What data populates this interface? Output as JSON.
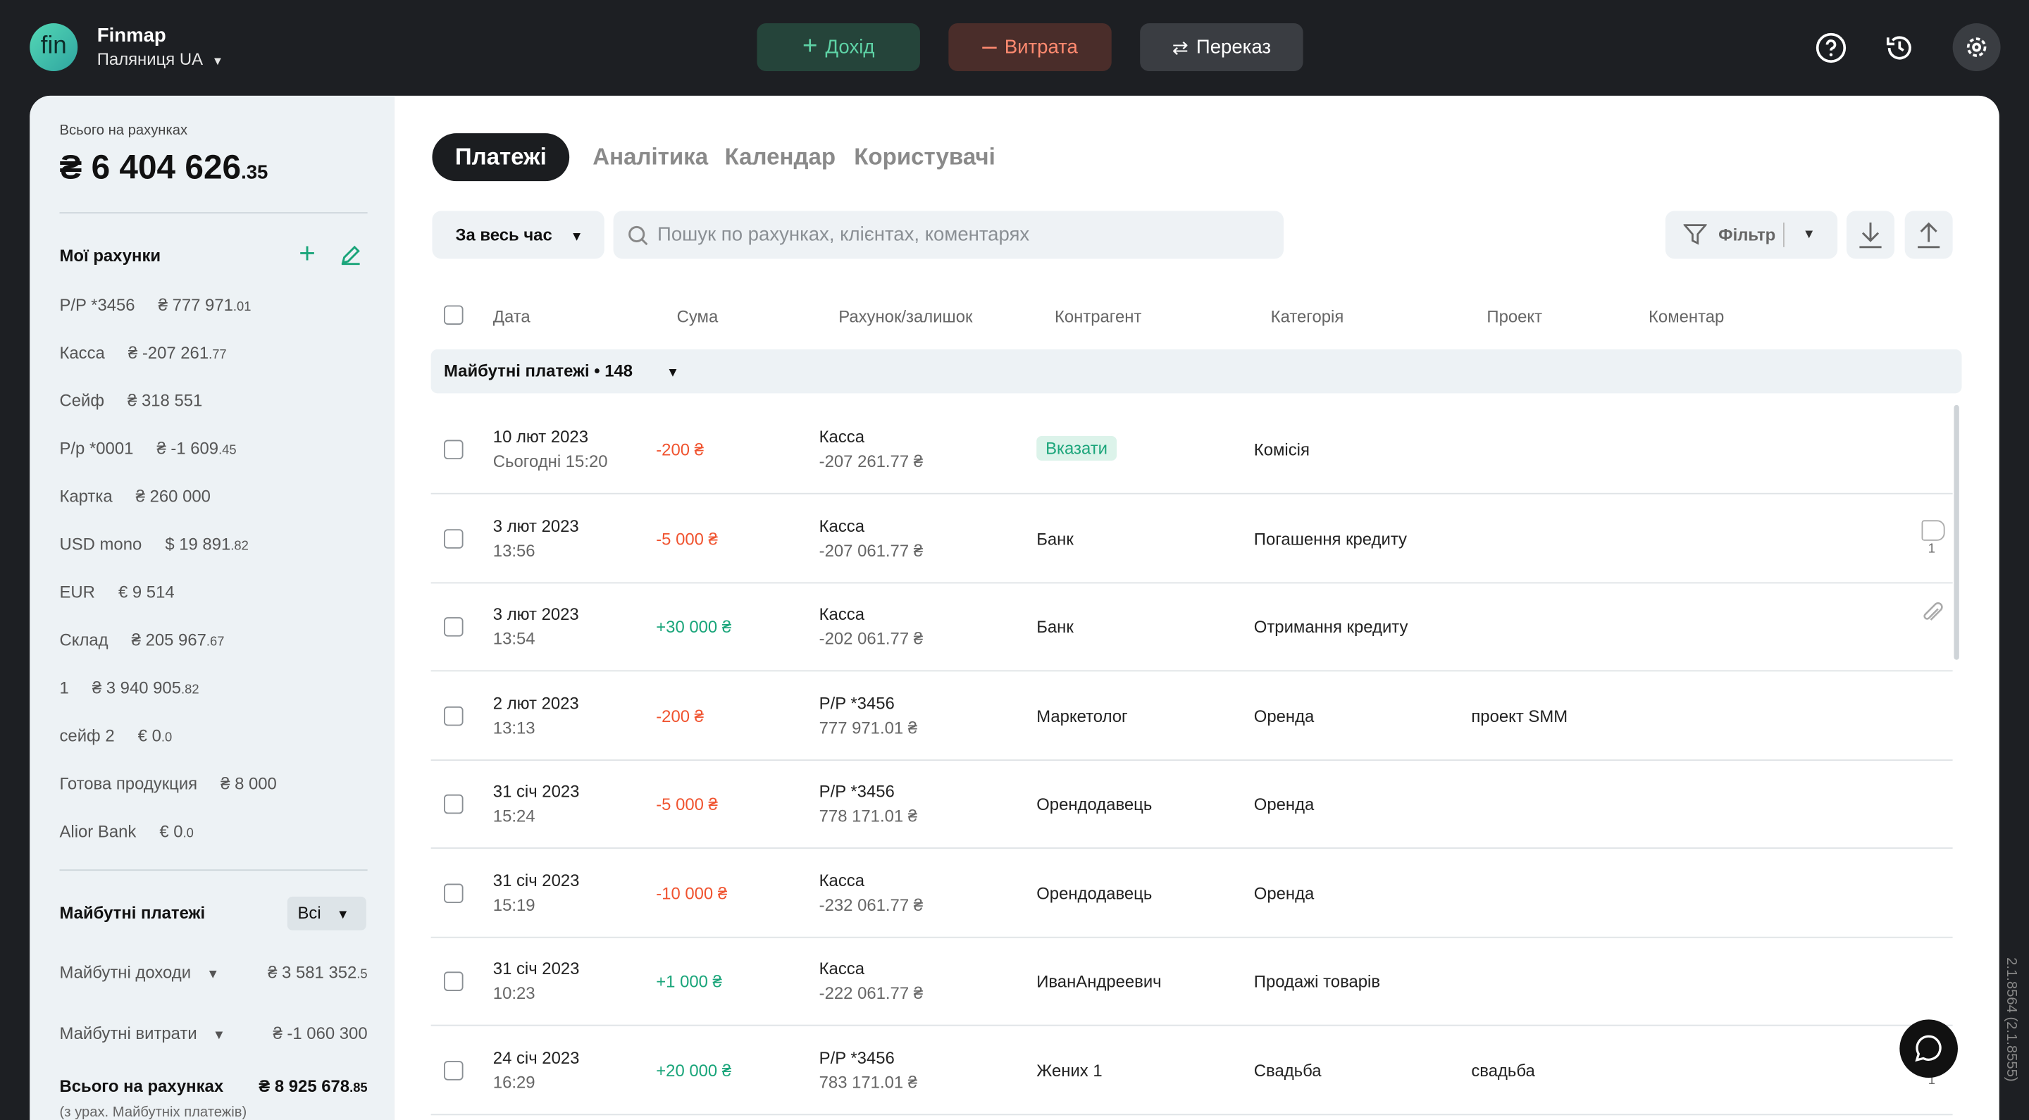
{
  "header": {
    "logo": "fin",
    "company": "Finmap",
    "workspace": "Паляниця UA",
    "buttons": {
      "income": "Дохід",
      "expense": "Витрата",
      "transfer": "Переказ"
    },
    "version": "2.1.8564 (2.1.8555)"
  },
  "sidebar": {
    "total_label": "Всього на рахунках",
    "total_amount": "₴ 6 404 626",
    "total_cents": ".35",
    "accounts_title": "Мої рахунки",
    "accounts": [
      {
        "name": "P/P *3456",
        "amount": "₴ 777 971",
        "cents": ".01"
      },
      {
        "name": "Касса",
        "amount": "₴ -207 261",
        "cents": ".77"
      },
      {
        "name": "Сейф",
        "amount": "₴ 318 551"
      },
      {
        "name": "Р/р *0001",
        "amount": "₴ -1 609",
        "cents": ".45"
      },
      {
        "name": "Картка",
        "amount": "₴ 260 000"
      },
      {
        "name": "USD mono",
        "amount": "$ 19 891",
        "cents": ".82"
      },
      {
        "name": "EUR",
        "amount": "€ 9 514"
      },
      {
        "name": "Склад",
        "amount": "₴ 205 967",
        "cents": ".67"
      },
      {
        "name": "1",
        "amount": "₴ 3 940 905",
        "cents": ".82"
      },
      {
        "name": "сейф 2",
        "amount": "€ 0",
        "cents": ".0"
      },
      {
        "name": "Готова продукция",
        "amount": "₴ 8 000"
      },
      {
        "name": "Alior Bank",
        "amount": "€ 0",
        "cents": ".0"
      }
    ],
    "future_title": "Майбутні платежі",
    "future_filter": "Всі",
    "future_income": {
      "label": "Майбутні доходи",
      "amount": "₴ 3 581 352",
      "cents": ".5"
    },
    "future_expense": {
      "label": "Майбутні витрати",
      "amount": "₴ -1 060 300"
    },
    "grand_total": {
      "label": "Всього на рахунках",
      "amount": "₴ 8 925 678",
      "cents": ".85",
      "note": "(з урах. Майбутніх платежів)"
    }
  },
  "main": {
    "tabs": [
      "Платежі",
      "Аналітика",
      "Календар",
      "Користувачі"
    ],
    "period": "За весь час",
    "search_placeholder": "Пошук по рахунках, клієнтах, коментарях",
    "filter": "Фільтр",
    "columns": [
      "Дата",
      "Сума",
      "Рахунок/залишок",
      "Контрагент",
      "Категорія",
      "Проект",
      "Коментар"
    ],
    "group": "Майбутні платежі • 148",
    "rows": [
      {
        "date": "10 лют 2023",
        "time": "Сьогодні 15:20",
        "amount": "-200 ₴",
        "account": "Касса",
        "balance": "-207 261.77 ₴",
        "counterparty_action": "Вказати",
        "category": "Комісія"
      },
      {
        "date": "3 лют 2023",
        "time": "13:56",
        "amount": "-5 000 ₴",
        "account": "Касса",
        "balance": "-207 061.77 ₴",
        "counterparty": "Банк",
        "category": "Погашення кредиту",
        "tags": "1"
      },
      {
        "date": "3 лют 2023",
        "time": "13:54",
        "amount": "+30 000 ₴",
        "account": "Касса",
        "balance": "-202 061.77 ₴",
        "counterparty": "Банк",
        "category": "Отримання кредиту",
        "attachment": true
      },
      {
        "date": "2 лют 2023",
        "time": "13:13",
        "amount": "-200 ₴",
        "account": "P/P *3456",
        "balance": "777 971.01 ₴",
        "counterparty": "Маркетолог",
        "category": "Оренда",
        "project": "проект SMM"
      },
      {
        "date": "31 січ 2023",
        "time": "15:24",
        "amount": "-5 000 ₴",
        "account": "P/P *3456",
        "balance": "778 171.01 ₴",
        "counterparty": "Орендодавець",
        "category": "Оренда"
      },
      {
        "date": "31 січ 2023",
        "time": "15:19",
        "amount": "-10 000 ₴",
        "account": "Касса",
        "balance": "-232 061.77 ₴",
        "counterparty": "Орендодавець",
        "category": "Оренда"
      },
      {
        "date": "31 січ 2023",
        "time": "10:23",
        "amount": "+1 000 ₴",
        "account": "Касса",
        "balance": "-222 061.77 ₴",
        "counterparty": "ИванАндреевич",
        "category": "Продажі товарів"
      },
      {
        "date": "24 січ 2023",
        "time": "16:29",
        "amount": "+20 000 ₴",
        "account": "P/P *3456",
        "balance": "783 171.01 ₴",
        "counterparty": "Жених 1",
        "category": "Свадьба",
        "project": "свадьба",
        "tags": "1"
      }
    ]
  }
}
